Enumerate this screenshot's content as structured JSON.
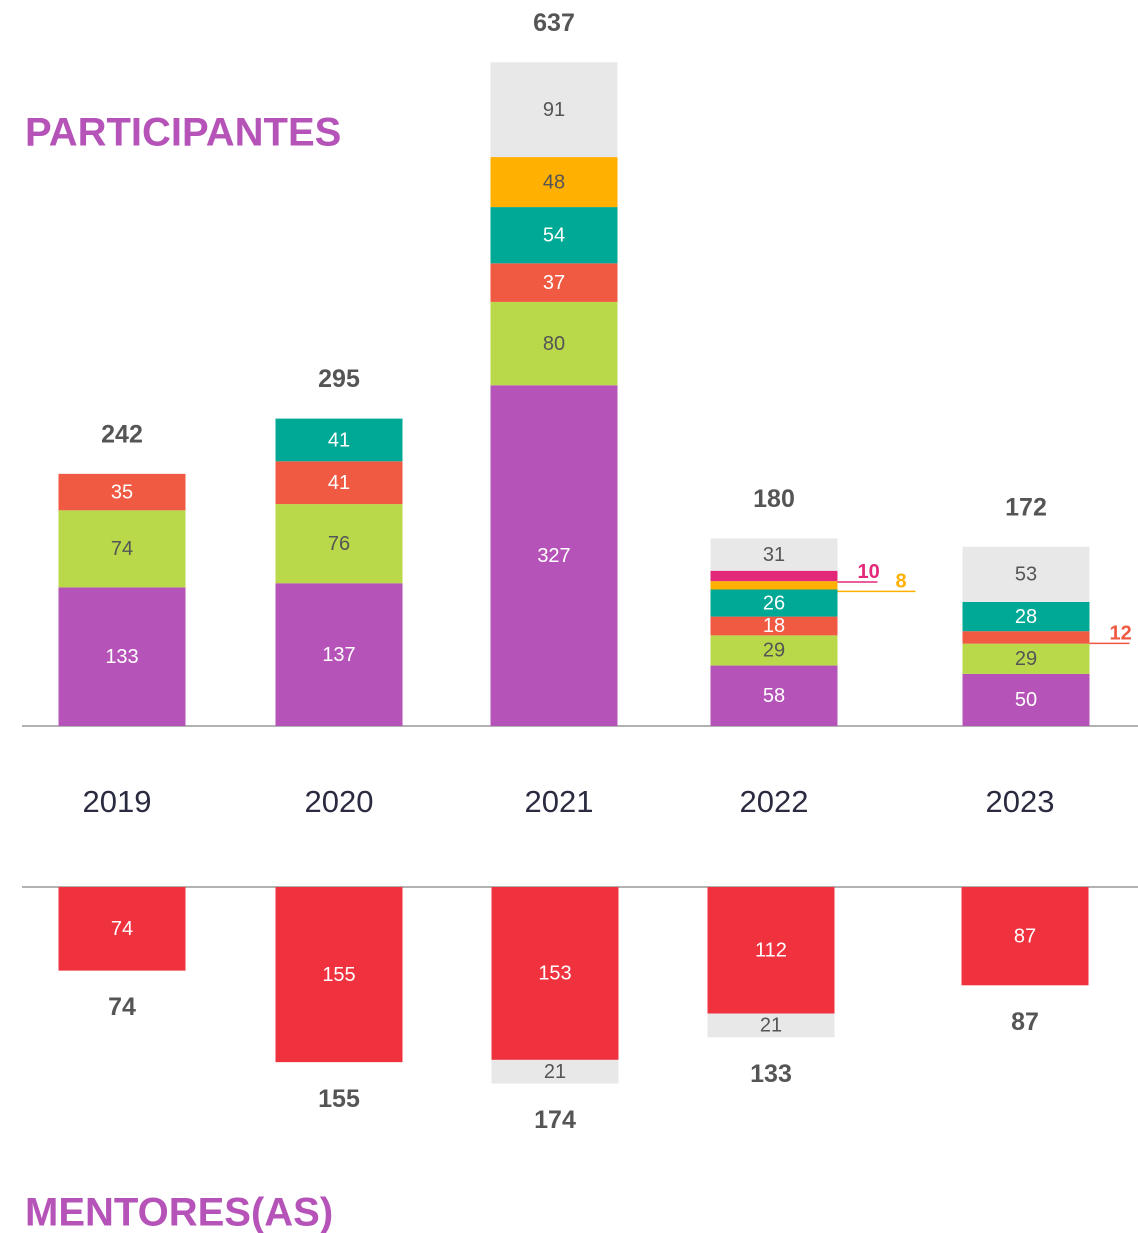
{
  "chart_data": [
    {
      "type": "bar",
      "stacked": true,
      "title": "PARTICIPANTES",
      "categories": [
        "2019",
        "2020",
        "2021",
        "2022",
        "2023"
      ],
      "series": [
        {
          "color": "#b553b8",
          "values": [
            133,
            137,
            327,
            58,
            50
          ]
        },
        {
          "color": "#b9d84a",
          "values": [
            74,
            76,
            80,
            29,
            29
          ]
        },
        {
          "color": "#f05a43",
          "values": [
            35,
            41,
            37,
            18,
            12
          ]
        },
        {
          "color": "#00a896",
          "values": [
            null,
            41,
            54,
            26,
            28
          ]
        },
        {
          "color": "#ffb000",
          "values": [
            null,
            null,
            48,
            8,
            null
          ]
        },
        {
          "color": "#e3287a",
          "values": [
            null,
            null,
            null,
            10,
            null
          ]
        },
        {
          "color": "#e8e8e8",
          "values": [
            null,
            null,
            91,
            31,
            53
          ]
        }
      ],
      "totals": [
        242,
        295,
        637,
        180,
        172
      ]
    },
    {
      "type": "bar",
      "stacked": true,
      "inverted": true,
      "title": "MENTORES(AS)",
      "series": [
        {
          "color": "#f0323f",
          "values": [
            74,
            155,
            153,
            112,
            87
          ]
        },
        {
          "color": "#e8e8e8",
          "values": [
            null,
            null,
            21,
            21,
            null
          ]
        }
      ],
      "totals": [
        74,
        155,
        174,
        133,
        87
      ]
    }
  ]
}
